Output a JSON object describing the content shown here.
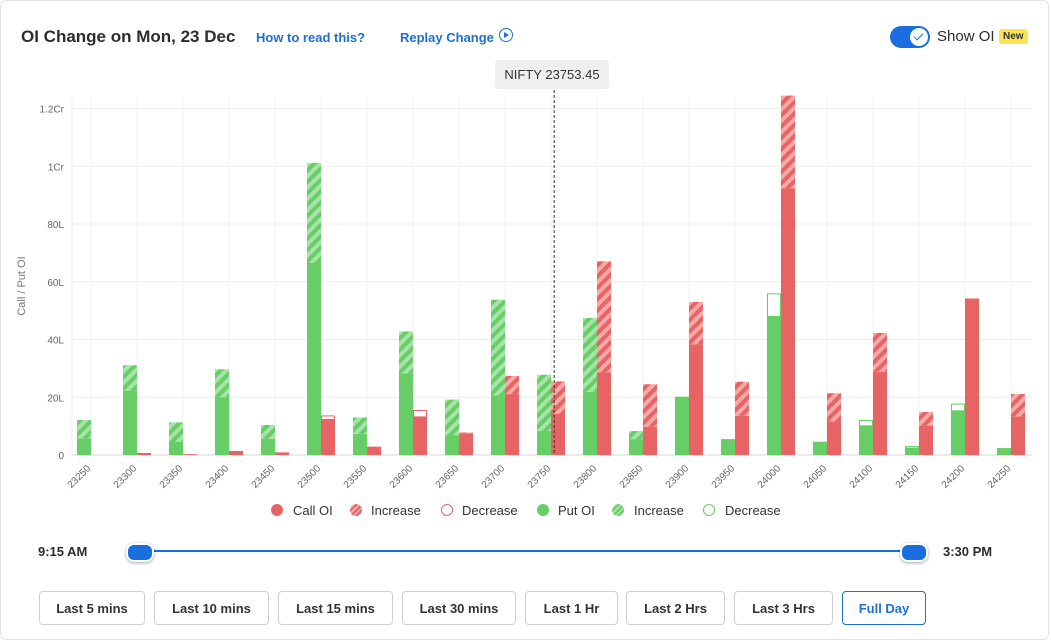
{
  "header": {
    "title": "OI Change on Mon, 23 Dec",
    "how_to_read": "How to read this?",
    "replay_change": "Replay Change",
    "show_oi_label": "Show OI",
    "new_badge": "New",
    "show_oi_enabled": true
  },
  "spot_label": "NIFTY 23753.45",
  "legend": {
    "call_oi": "Call OI",
    "call_increase": "Increase",
    "call_decrease": "Decrease",
    "put_oi": "Put OI",
    "put_increase": "Increase",
    "put_decrease": "Decrease"
  },
  "colors": {
    "call": "#e86464",
    "call_light": "#f5a9a9",
    "put": "#67cd67",
    "put_light": "#a8e4a8",
    "accent": "#1a6ee0"
  },
  "time_range": {
    "start": "9:15 AM",
    "end": "3:30 PM"
  },
  "buttons": [
    {
      "label": "Last 5 mins",
      "active": false
    },
    {
      "label": "Last 10 mins",
      "active": false
    },
    {
      "label": "Last 15 mins",
      "active": false
    },
    {
      "label": "Last 30 mins",
      "active": false
    },
    {
      "label": "Last 1 Hr",
      "active": false
    },
    {
      "label": "Last 2 Hrs",
      "active": false
    },
    {
      "label": "Last 3 Hrs",
      "active": false
    },
    {
      "label": "Full Day",
      "active": true
    }
  ],
  "chart_data": {
    "type": "bar",
    "ylabel": "Call / Put OI",
    "y_unit": "Lakh",
    "ylim": [
      0,
      124
    ],
    "y_ticks": [
      {
        "value": 0,
        "label": "0"
      },
      {
        "value": 20,
        "label": "20L"
      },
      {
        "value": 40,
        "label": "40L"
      },
      {
        "value": 60,
        "label": "60L"
      },
      {
        "value": 80,
        "label": "80L"
      },
      {
        "value": 100,
        "label": "1Cr"
      },
      {
        "value": 120,
        "label": "1.2Cr"
      }
    ],
    "categories": [
      "23250",
      "23300",
      "23350",
      "23400",
      "23450",
      "23500",
      "23550",
      "23600",
      "23650",
      "23700",
      "23750",
      "23800",
      "23850",
      "23900",
      "23950",
      "24000",
      "24050",
      "24100",
      "24150",
      "24200",
      "24250"
    ],
    "spot_price": 23753.45,
    "grid": true,
    "legend_position": "bottom",
    "series": [
      {
        "name": "Put OI",
        "oi": [
          5.8,
          22.3,
          4.5,
          20.0,
          5.6,
          66.5,
          7.3,
          28.3,
          6.9,
          20.6,
          8.3,
          21.9,
          5.5,
          20.2,
          5.5,
          48.0,
          4.6,
          10.1,
          2.4,
          15.3,
          2.4
        ],
        "change": [
          6.3,
          8.8,
          6.8,
          9.7,
          4.8,
          34.7,
          5.7,
          14.5,
          12.3,
          33.2,
          19.5,
          25.6,
          2.8,
          0,
          0,
          -8.0,
          0,
          -2.0,
          -0.7,
          -2.5,
          0
        ]
      },
      {
        "name": "Call OI",
        "oi": [
          0,
          0.7,
          0.3,
          1.4,
          0.9,
          12.3,
          2.9,
          13.2,
          7.5,
          21.1,
          14.2,
          28.6,
          9.8,
          38.3,
          13.6,
          92.3,
          11.6,
          28.8,
          10.1,
          54.2,
          13.4
        ],
        "change": [
          0,
          0,
          0,
          0,
          0,
          -1.4,
          0,
          -2.4,
          0.3,
          6.3,
          11.3,
          38.5,
          14.7,
          14.7,
          11.8,
          32.2,
          9.8,
          13.5,
          4.8,
          0,
          7.7
        ]
      }
    ]
  }
}
